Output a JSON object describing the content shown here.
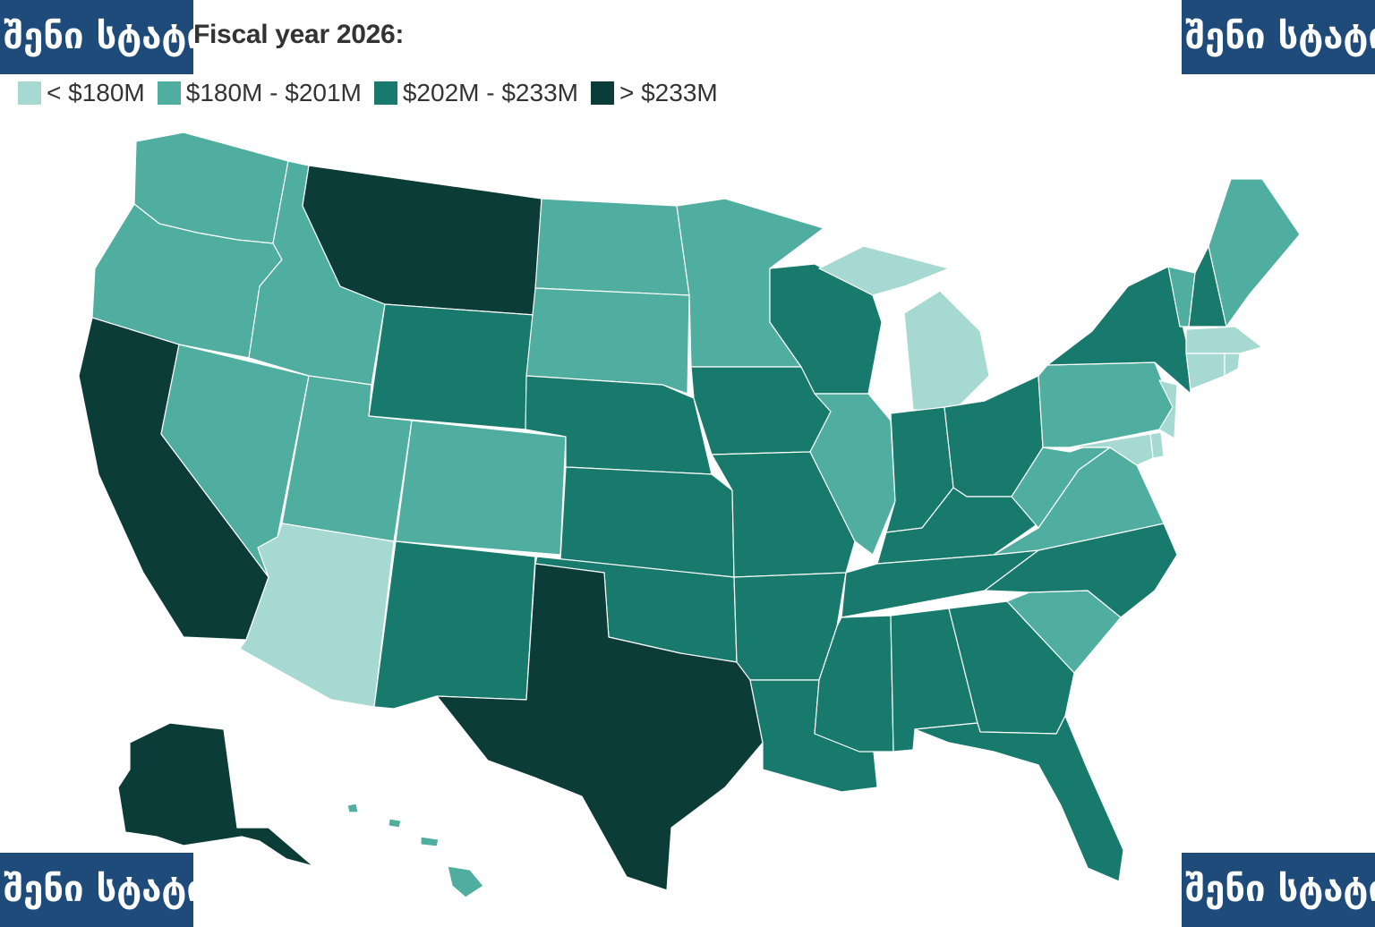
{
  "title": "Fiscal year 2026:",
  "watermark": "შენი სტატისტიკა",
  "legend": [
    {
      "label": "< $180M",
      "color": "#a6d9d1",
      "class": "c1"
    },
    {
      "label": "$180M - $201M",
      "color": "#4fae9f",
      "class": "c2"
    },
    {
      "label": "$202M - $233M",
      "color": "#187a6c",
      "class": "c3"
    },
    {
      "label": "> $233M",
      "color": "#0b3c37",
      "class": "c4"
    }
  ],
  "states": {
    "WA": "c2",
    "OR": "c2",
    "CA": "c4",
    "NV": "c2",
    "ID": "c2",
    "MT": "c4",
    "WY": "c3",
    "UT": "c2",
    "AZ": "c1",
    "CO": "c2",
    "NM": "c3",
    "ND": "c2",
    "SD": "c2",
    "NE": "c3",
    "KS": "c3",
    "OK": "c3",
    "TX": "c4",
    "MN": "c2",
    "IA": "c3",
    "MO": "c3",
    "AR": "c3",
    "LA": "c3",
    "WI": "c3",
    "IL": "c2",
    "MI": "c1",
    "IN": "c3",
    "OH": "c3",
    "KY": "c3",
    "TN": "c3",
    "MS": "c3",
    "AL": "c3",
    "GA": "c3",
    "FL": "c3",
    "SC": "c2",
    "NC": "c3",
    "VA": "c2",
    "WV": "c2",
    "PA": "c2",
    "NY": "c3",
    "VT": "c2",
    "NH": "c3",
    "ME": "c2",
    "MA": "c1",
    "RI": "c1",
    "CT": "c1",
    "NJ": "c1",
    "DE": "c1",
    "MD": "c1",
    "AK": "c4",
    "HI": "c2"
  }
}
